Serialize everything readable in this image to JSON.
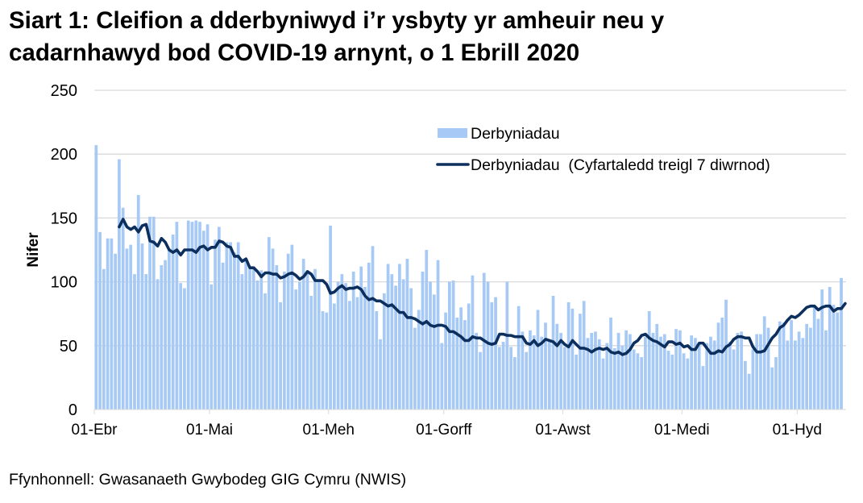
{
  "title": "Siart 1: Cleifion a dderbyniwyd i’r ysbyty yr amheuir neu y cadarnhawyd bod COVID-19 arnynt, o 1 Ebrill 2020",
  "title_lines": [
    "Siart 1: Cleifion a dderbyniwyd i’r ysbyty yr amheuir neu y",
    "cadarnhawyd bod COVID-19 arnynt, o 1 Ebrill 2020"
  ],
  "source": "Ffynhonnell: Gwasanaeth Gwybodeg GIG Cymru (NWIS)",
  "colors": {
    "bars": "#a6c9f5",
    "line": "#0c2f5e",
    "grid": "#d9d9d9",
    "axis": "#d9d9d9"
  },
  "chart_data": {
    "type": "bar+line",
    "title": "Siart 1: Cleifion a dderbyniwyd i’r ysbyty yr amheuir neu y cadarnhawyd bod COVID-19 arnynt, o 1 Ebrill 2020",
    "xlabel": "",
    "ylabel": "Nifer",
    "ylim": [
      0,
      250
    ],
    "yticks": [
      0,
      50,
      100,
      150,
      200,
      250
    ],
    "grid": true,
    "legend_position": "top-right-inside",
    "x_start": "01-Ebr",
    "x_tick_labels": [
      "01-Ebr",
      "01-Mai",
      "01-Meh",
      "01-Gorff",
      "01-Awst",
      "01-Medi",
      "01-Hyd"
    ],
    "x_tick_day_index": [
      0,
      30,
      61,
      91,
      122,
      153,
      183
    ],
    "series": [
      {
        "name": "Derbyniadau",
        "type": "bar",
        "values": [
          207,
          139,
          110,
          134,
          134,
          122,
          196,
          158,
          126,
          129,
          106,
          168,
          130,
          106,
          151,
          151,
          102,
          113,
          117,
          126,
          137,
          147,
          99,
          95,
          148,
          147,
          148,
          147,
          140,
          145,
          98,
          133,
          143,
          115,
          131,
          131,
          123,
          131,
          106,
          118,
          110,
          112,
          101,
          109,
          91,
          135,
          126,
          113,
          84,
          108,
          122,
          129,
          94,
          100,
          118,
          109,
          89,
          110,
          101,
          77,
          76,
          144,
          83,
          100,
          106,
          99,
          85,
          108,
          88,
          112,
          96,
          115,
          128,
          77,
          55,
          91,
          114,
          106,
          97,
          114,
          102,
          118,
          95,
          64,
          78,
          108,
          125,
          100,
          90,
          117,
          52,
          76,
          100,
          101,
          72,
          80,
          70,
          83,
          105,
          60,
          45,
          107,
          100,
          84,
          88,
          49,
          53,
          100,
          49,
          41,
          81,
          61,
          45,
          62,
          58,
          78,
          57,
          68,
          55,
          89,
          67,
          60,
          49,
          84,
          79,
          43,
          75,
          85,
          56,
          60,
          61,
          55,
          40,
          52,
          72,
          48,
          60,
          50,
          62,
          59,
          47,
          44,
          41,
          57,
          77,
          60,
          67,
          57,
          59,
          46,
          43,
          63,
          62,
          44,
          40,
          58,
          56,
          52,
          34,
          52,
          57,
          54,
          68,
          72,
          86,
          53,
          47,
          60,
          61,
          38,
          28,
          47,
          59,
          59,
          73,
          64,
          33,
          41,
          69,
          68,
          54,
          70,
          54,
          61,
          56,
          67,
          64,
          81,
          71,
          94,
          62,
          96,
          82,
          76,
          103
        ]
      },
      {
        "name": "Derbyniadau  (Cyfartaledd treigl 7 diwrnod)",
        "type": "line",
        "start_index": 6,
        "values": [
          143,
          149,
          143,
          141,
          143,
          139,
          144,
          145,
          132,
          131,
          128,
          134,
          131,
          125,
          123,
          125,
          121,
          125,
          125,
          125,
          123,
          127,
          128,
          125,
          127,
          127,
          132,
          131,
          128,
          127,
          120,
          120,
          116,
          118,
          111,
          111,
          108,
          104,
          107,
          107,
          106,
          106,
          103,
          104,
          106,
          107,
          105,
          102,
          104,
          108,
          106,
          101,
          101,
          101,
          98,
          91,
          92,
          95,
          97,
          94,
          95,
          95,
          96,
          94,
          89,
          86,
          87,
          85,
          85,
          83,
          81,
          82,
          79,
          76,
          76,
          72,
          72,
          71,
          69,
          67,
          69,
          66,
          65,
          66,
          66,
          65,
          61,
          61,
          59,
          57,
          54,
          54,
          57,
          56,
          56,
          54,
          52,
          51,
          52,
          59,
          59,
          58,
          58,
          57,
          57,
          57,
          52,
          51,
          54,
          50,
          52,
          55,
          54,
          53,
          50,
          54,
          51,
          49,
          54,
          51,
          48,
          48,
          47,
          45,
          47,
          48,
          47,
          48,
          45,
          44,
          45,
          43,
          44,
          47,
          52,
          54,
          58,
          59,
          56,
          54,
          53,
          51,
          49,
          53,
          53,
          51,
          52,
          49,
          50,
          47,
          47,
          52,
          52,
          48,
          44,
          44,
          46,
          45,
          49,
          51,
          55,
          57,
          57,
          56,
          56,
          49,
          45,
          45,
          46,
          51,
          56,
          59,
          64,
          66,
          70,
          73,
          72,
          74,
          77,
          80,
          81,
          81,
          78,
          80,
          81,
          81,
          77,
          79,
          79,
          83
        ],
        "note": "Estimated from pixel positions; line starts on day 7 (index 6)."
      }
    ]
  },
  "legend": {
    "bar_label": "Derbyniadau",
    "line_label": "Derbyniadau  (Cyfartaledd treigl 7 diwrnod)"
  },
  "axis": {
    "y_label": "Nifer",
    "y_ticks": [
      "0",
      "50",
      "100",
      "150",
      "200",
      "250"
    ],
    "x_ticks": [
      "01-Ebr",
      "01-Mai",
      "01-Meh",
      "01-Gorff",
      "01-Awst",
      "01-Medi",
      "01-Hyd"
    ]
  }
}
